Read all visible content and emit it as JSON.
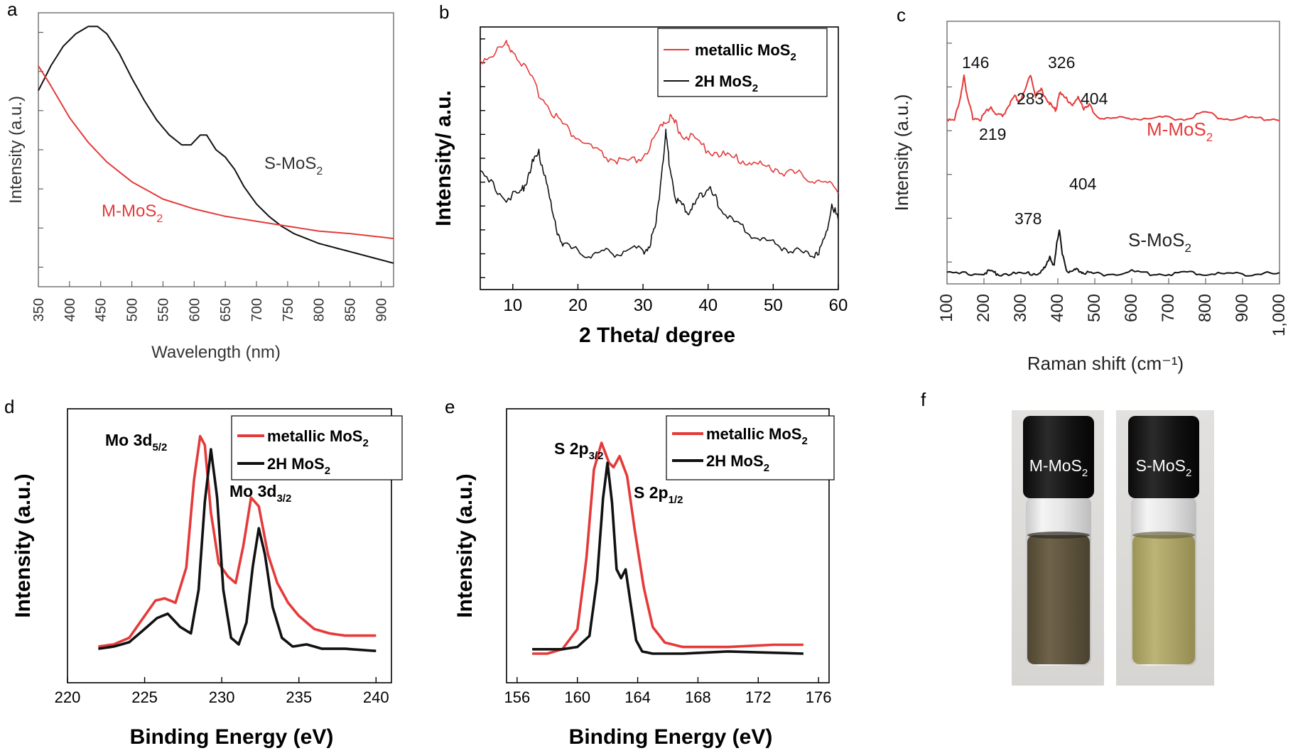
{
  "colors": {
    "metallic": "#e53a3a",
    "semi": "#111111"
  },
  "chart_data": [
    {
      "panel": "a",
      "type": "line",
      "xlabel": "Wavelength (nm)",
      "ylabel": "Intensity (a.u.)",
      "xlim": [
        350,
        920
      ],
      "ylim": [
        0,
        1
      ],
      "xticks": [
        "350",
        "400",
        "450",
        "500",
        "550",
        "600",
        "650",
        "700",
        "750",
        "800",
        "850",
        "900"
      ],
      "series": [
        {
          "name": "S-MoS",
          "label_sub": "2",
          "color": "#111111",
          "x": [
            350,
            370,
            390,
            410,
            430,
            445,
            460,
            480,
            500,
            520,
            540,
            560,
            580,
            595,
            610,
            620,
            635,
            650,
            665,
            680,
            700,
            720,
            740,
            760,
            780,
            800,
            830,
            860,
            890,
            920
          ],
          "y": [
            0.74,
            0.84,
            0.92,
            0.97,
            1.0,
            1.0,
            0.97,
            0.89,
            0.79,
            0.7,
            0.62,
            0.56,
            0.52,
            0.52,
            0.56,
            0.56,
            0.5,
            0.47,
            0.42,
            0.35,
            0.28,
            0.23,
            0.19,
            0.16,
            0.14,
            0.12,
            0.1,
            0.08,
            0.06,
            0.04
          ]
        },
        {
          "name": "M-MoS",
          "label_sub": "2",
          "color": "#e53a3a",
          "x": [
            350,
            370,
            400,
            430,
            460,
            500,
            550,
            600,
            650,
            700,
            750,
            800,
            850,
            920
          ],
          "y": [
            0.84,
            0.76,
            0.63,
            0.53,
            0.45,
            0.37,
            0.3,
            0.26,
            0.23,
            0.21,
            0.19,
            0.17,
            0.16,
            0.14
          ]
        }
      ]
    },
    {
      "panel": "b",
      "type": "line",
      "xlabel": "2 Theta/ degree",
      "ylabel": "Intensity/ a.u.",
      "xlim": [
        5,
        60
      ],
      "ylim": [
        0,
        1
      ],
      "xticks": [
        "10",
        "20",
        "30",
        "40",
        "50",
        "60"
      ],
      "legend": [
        "metallic MoS",
        "2H MoS"
      ],
      "legend_sub": "2",
      "series": [
        {
          "name": "metallic MoS2",
          "color": "#e53a3a",
          "x": [
            5,
            7,
            9,
            10,
            12,
            14,
            16,
            18,
            20,
            22,
            24,
            26,
            28,
            30,
            32,
            33,
            34,
            35,
            36,
            38,
            40,
            42,
            44,
            46,
            48,
            50,
            52,
            54,
            56,
            58,
            60
          ],
          "y": [
            0.9,
            0.93,
            0.97,
            0.95,
            0.86,
            0.76,
            0.68,
            0.61,
            0.56,
            0.52,
            0.48,
            0.46,
            0.45,
            0.48,
            0.56,
            0.63,
            0.65,
            0.62,
            0.58,
            0.55,
            0.51,
            0.49,
            0.47,
            0.46,
            0.44,
            0.43,
            0.41,
            0.4,
            0.38,
            0.36,
            0.34
          ]
        },
        {
          "name": "2H MoS2",
          "color": "#111111",
          "x": [
            5,
            7,
            9,
            11,
            12,
            13,
            14,
            15,
            16,
            17,
            18,
            20,
            22,
            24,
            26,
            28,
            30,
            31,
            32,
            33,
            33.5,
            34,
            35,
            36,
            37,
            38,
            39,
            40,
            41,
            42,
            44,
            46,
            48,
            50,
            52,
            54,
            56,
            57,
            58,
            59,
            60
          ],
          "y": [
            0.4,
            0.35,
            0.3,
            0.31,
            0.37,
            0.45,
            0.49,
            0.4,
            0.24,
            0.14,
            0.09,
            0.06,
            0.05,
            0.06,
            0.06,
            0.07,
            0.07,
            0.09,
            0.18,
            0.45,
            0.58,
            0.46,
            0.3,
            0.26,
            0.24,
            0.27,
            0.32,
            0.34,
            0.3,
            0.25,
            0.19,
            0.15,
            0.12,
            0.1,
            0.08,
            0.06,
            0.05,
            0.07,
            0.12,
            0.28,
            0.2
          ]
        }
      ]
    },
    {
      "panel": "c",
      "type": "line",
      "xlabel": "Raman shift (cm⁻¹)",
      "ylabel": "Intensity (a.u.)",
      "xlim": [
        100,
        1000
      ],
      "ylim": [
        0,
        1
      ],
      "xticks": [
        "100",
        "200",
        "300",
        "400",
        "500",
        "600",
        "700",
        "800",
        "900",
        "1,000"
      ],
      "peaks_m": [
        "146",
        "219",
        "283",
        "326",
        "404"
      ],
      "peaks_s": [
        "378",
        "404"
      ],
      "series": [
        {
          "name": "M-MoS",
          "label_sub": "2",
          "color": "#e53a3a",
          "x": [
            100,
            120,
            135,
            146,
            155,
            170,
            190,
            205,
            219,
            230,
            250,
            270,
            283,
            295,
            310,
            326,
            340,
            355,
            370,
            385,
            395,
            404,
            420,
            440,
            455,
            470,
            485,
            500,
            520,
            550,
            600,
            650,
            700,
            750,
            800,
            850,
            900,
            950,
            1000
          ],
          "y": [
            0.47,
            0.47,
            0.6,
            0.8,
            0.62,
            0.48,
            0.47,
            0.52,
            0.56,
            0.5,
            0.49,
            0.58,
            0.63,
            0.6,
            0.66,
            0.8,
            0.64,
            0.68,
            0.62,
            0.55,
            0.54,
            0.66,
            0.62,
            0.58,
            0.62,
            0.55,
            0.58,
            0.49,
            0.48,
            0.47,
            0.48,
            0.47,
            0.48,
            0.47,
            0.52,
            0.47,
            0.48,
            0.47,
            0.47
          ]
        },
        {
          "name": "S-MoS",
          "label_sub": "2",
          "color": "#111111",
          "x": [
            100,
            150,
            200,
            220,
            240,
            280,
            320,
            350,
            365,
            378,
            390,
            398,
            404,
            412,
            425,
            440,
            455,
            470,
            500,
            550,
            600,
            650,
            700,
            750,
            800,
            850,
            900,
            950,
            1000
          ],
          "y": [
            0.01,
            0.01,
            0.02,
            0.03,
            0.01,
            0.01,
            0.01,
            0.02,
            0.06,
            0.17,
            0.08,
            0.3,
            0.42,
            0.18,
            0.04,
            0.03,
            0.05,
            0.02,
            0.01,
            0.01,
            0.03,
            0.01,
            0.01,
            0.02,
            0.01,
            0.01,
            0.01,
            0.01,
            0.01
          ]
        }
      ]
    },
    {
      "panel": "d",
      "type": "line",
      "xlabel": "Binding Energy (eV)",
      "ylabel": "Intensity (a.u.)",
      "xlim": [
        220,
        241
      ],
      "ylim": [
        0,
        1
      ],
      "xticks": [
        "220",
        "225",
        "230",
        "235",
        "240"
      ],
      "legend": [
        "metallic MoS",
        "2H MoS"
      ],
      "legend_sub": "2",
      "annotations": [
        {
          "text": "Mo 3d",
          "sub": "5/2"
        },
        {
          "text": "Mo 3d",
          "sub": "3/2"
        }
      ],
      "series": [
        {
          "name": "metallic MoS2",
          "color": "#e53a3a",
          "x": [
            222,
            223,
            224,
            225,
            225.7,
            226.3,
            227,
            227.7,
            228.2,
            228.6,
            228.9,
            229.3,
            229.8,
            230.4,
            230.9,
            231.4,
            231.9,
            232.4,
            233,
            233.6,
            234.3,
            235,
            236,
            237,
            238,
            239,
            240
          ],
          "y": [
            0.04,
            0.05,
            0.08,
            0.18,
            0.25,
            0.26,
            0.24,
            0.4,
            0.8,
            1.0,
            0.96,
            0.65,
            0.42,
            0.36,
            0.33,
            0.5,
            0.72,
            0.68,
            0.46,
            0.33,
            0.24,
            0.18,
            0.12,
            0.1,
            0.09,
            0.09,
            0.09
          ]
        },
        {
          "name": "2H MoS2",
          "color": "#111111",
          "x": [
            222,
            223,
            224,
            225,
            225.8,
            226.5,
            227.3,
            228,
            228.5,
            228.9,
            229.3,
            229.7,
            230.1,
            230.6,
            231.1,
            231.6,
            232,
            232.4,
            232.8,
            233.3,
            233.9,
            234.6,
            235.5,
            236.5,
            238,
            240
          ],
          "y": [
            0.03,
            0.04,
            0.06,
            0.12,
            0.17,
            0.19,
            0.13,
            0.1,
            0.3,
            0.7,
            0.94,
            0.72,
            0.3,
            0.08,
            0.05,
            0.15,
            0.4,
            0.58,
            0.46,
            0.22,
            0.08,
            0.04,
            0.05,
            0.03,
            0.03,
            0.02
          ]
        }
      ]
    },
    {
      "panel": "e",
      "type": "line",
      "xlabel": "Binding Energy (eV)",
      "ylabel": "Intensity (a.u.)",
      "xlim": [
        155.3,
        176.7
      ],
      "ylim": [
        0,
        1
      ],
      "xticks": [
        "156",
        "160",
        "164",
        "168",
        "172",
        "176"
      ],
      "legend": [
        "metallic MoS",
        "2H MoS"
      ],
      "legend_sub": "2",
      "annotations": [
        {
          "text": "S 2p",
          "sub": "3/2"
        },
        {
          "text": "S 2p",
          "sub": "1/2"
        }
      ],
      "series": [
        {
          "name": "metallic MoS2",
          "color": "#e53a3a",
          "x": [
            157,
            158,
            159,
            160,
            160.6,
            161.1,
            161.6,
            162.1,
            162.4,
            162.8,
            163.3,
            163.8,
            164.4,
            165,
            165.8,
            167,
            170,
            173,
            175
          ],
          "y": [
            0.02,
            0.02,
            0.04,
            0.13,
            0.45,
            0.85,
            0.97,
            0.88,
            0.86,
            0.91,
            0.82,
            0.58,
            0.32,
            0.14,
            0.07,
            0.05,
            0.05,
            0.06,
            0.06
          ]
        },
        {
          "name": "2H MoS2",
          "color": "#111111",
          "x": [
            157,
            158,
            159,
            160,
            160.8,
            161.3,
            161.7,
            162,
            162.3,
            162.6,
            162.9,
            163.2,
            163.5,
            163.9,
            164.3,
            165,
            167,
            170,
            175
          ],
          "y": [
            0.04,
            0.04,
            0.04,
            0.05,
            0.1,
            0.35,
            0.72,
            0.88,
            0.7,
            0.4,
            0.36,
            0.4,
            0.26,
            0.08,
            0.03,
            0.02,
            0.02,
            0.03,
            0.02
          ]
        }
      ]
    }
  ],
  "photo": {
    "panel": "f",
    "vials": [
      {
        "name": "M-MoS",
        "sub": "2",
        "liquid": "#6b5f45",
        "liquid_dark": "#4f4632"
      },
      {
        "name": "S-MoS",
        "sub": "2",
        "liquid": "#b5ad6e",
        "liquid_dark": "#9c9455"
      }
    ]
  }
}
